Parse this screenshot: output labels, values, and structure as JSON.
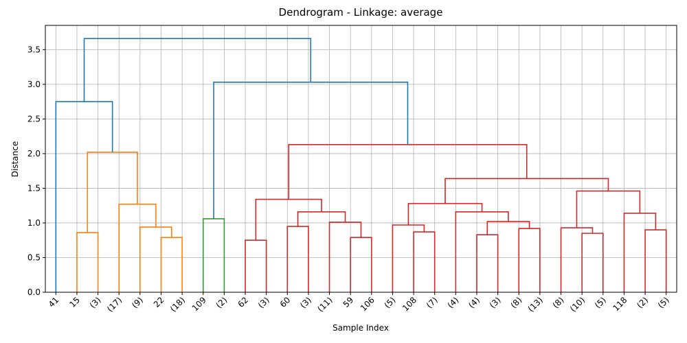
{
  "chart_data": {
    "type": "dendrogram",
    "title": "Dendrogram - Linkage: average",
    "x_label": "Sample Index",
    "y_label": "Distance",
    "categories": [
      "41",
      "15",
      "(3)",
      "(17)",
      "(9)",
      "22",
      "(18)",
      "109",
      "(2)",
      "62",
      "(3)",
      "60",
      "(3)",
      "(11)",
      "59",
      "106",
      "(5)",
      "108",
      "(7)",
      "(4)",
      "(4)",
      "(3)",
      "(8)",
      "(13)",
      "(8)",
      "(10)",
      "(5)",
      "118",
      "(2)",
      "(5)"
    ],
    "links": [
      {
        "children": [
          1,
          2
        ],
        "height": 0.86,
        "color": "#ff7f0e"
      },
      {
        "children": [
          5,
          6
        ],
        "height": 0.79,
        "color": "#ff7f0e"
      },
      {
        "children": [
          4,
          31
        ],
        "height": 0.94,
        "color": "#ff7f0e"
      },
      {
        "children": [
          3,
          32
        ],
        "height": 1.27,
        "color": "#ff7f0e"
      },
      {
        "children": [
          30,
          33
        ],
        "height": 2.02,
        "color": "#ff7f0e"
      },
      {
        "children": [
          0,
          34
        ],
        "height": 2.75,
        "color": "#1f77b4"
      },
      {
        "children": [
          7,
          8
        ],
        "height": 1.06,
        "color": "#2ca02c"
      },
      {
        "children": [
          9,
          10
        ],
        "height": 0.75,
        "color": "#d62728"
      },
      {
        "children": [
          11,
          12
        ],
        "height": 0.95,
        "color": "#d62728"
      },
      {
        "children": [
          14,
          15
        ],
        "height": 0.79,
        "color": "#d62728"
      },
      {
        "children": [
          13,
          39
        ],
        "height": 1.01,
        "color": "#d62728"
      },
      {
        "children": [
          38,
          40
        ],
        "height": 1.16,
        "color": "#d62728"
      },
      {
        "children": [
          37,
          41
        ],
        "height": 1.34,
        "color": "#d62728"
      },
      {
        "children": [
          17,
          18
        ],
        "height": 0.87,
        "color": "#d62728"
      },
      {
        "children": [
          16,
          43
        ],
        "height": 0.97,
        "color": "#d62728"
      },
      {
        "children": [
          20,
          21
        ],
        "height": 0.83,
        "color": "#d62728"
      },
      {
        "children": [
          22,
          23
        ],
        "height": 0.92,
        "color": "#d62728"
      },
      {
        "children": [
          45,
          46
        ],
        "height": 1.02,
        "color": "#d62728"
      },
      {
        "children": [
          19,
          47
        ],
        "height": 1.16,
        "color": "#d62728"
      },
      {
        "children": [
          44,
          48
        ],
        "height": 1.28,
        "color": "#d62728"
      },
      {
        "children": [
          25,
          26
        ],
        "height": 0.85,
        "color": "#d62728"
      },
      {
        "children": [
          24,
          50
        ],
        "height": 0.93,
        "color": "#d62728"
      },
      {
        "children": [
          28,
          29
        ],
        "height": 0.9,
        "color": "#d62728"
      },
      {
        "children": [
          27,
          52
        ],
        "height": 1.14,
        "color": "#d62728"
      },
      {
        "children": [
          51,
          53
        ],
        "height": 1.46,
        "color": "#d62728"
      },
      {
        "children": [
          49,
          54
        ],
        "height": 1.64,
        "color": "#d62728"
      },
      {
        "children": [
          42,
          55
        ],
        "height": 2.13,
        "color": "#d62728"
      },
      {
        "children": [
          36,
          56
        ],
        "height": 3.03,
        "color": "#1f77b4"
      },
      {
        "children": [
          35,
          57
        ],
        "height": 3.66,
        "color": "#1f77b4"
      }
    ],
    "ylim": [
      0,
      3.85
    ],
    "yticks": [
      {
        "value": 0,
        "label": "0.0"
      },
      {
        "value": 0.5,
        "label": "0.5"
      },
      {
        "value": 1,
        "label": "1.0"
      },
      {
        "value": 1.5,
        "label": "1.5"
      },
      {
        "value": 2,
        "label": "2.0"
      },
      {
        "value": 2.5,
        "label": "2.5"
      },
      {
        "value": 3,
        "label": "3.0"
      },
      {
        "value": 3.5,
        "label": "3.5"
      }
    ],
    "grid": true
  }
}
